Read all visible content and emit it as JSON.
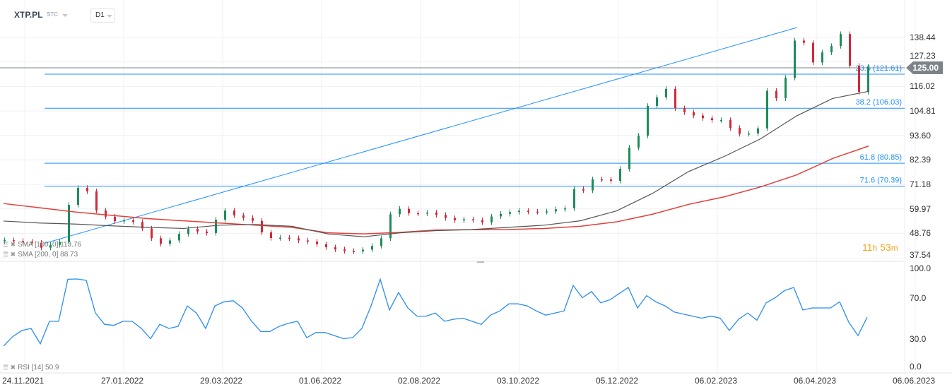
{
  "header": {
    "symbol": "XTP.PL",
    "exchange": "STC",
    "timeframe": "D1"
  },
  "current_price": "125.00",
  "countdown": {
    "hours": "11",
    "h_unit": "h",
    "minutes": "53",
    "m_unit": "m"
  },
  "legend": {
    "sma100": "SMA [100, 0] 113.76",
    "sma200": "SMA [200, 0] 88.73",
    "rsi": "RSI [14] 50.9"
  },
  "colors": {
    "up": "#1e8c5a",
    "down": "#d0293a",
    "sma100": "#555555",
    "sma200": "#e0403a",
    "fib": "#1e90ff",
    "rsi": "#2a8ef0",
    "price_line": "#7d8489"
  },
  "fib_labels": [
    "23.6 (121.61)",
    "38.2 (106.03)",
    "61.8 (80.85)",
    "71.6 (70.39)"
  ],
  "chart_data": {
    "type": "candlestick",
    "price_ticks": [
      "138.44",
      "127.23",
      "116.02",
      "104.81",
      "93.60",
      "82.39",
      "71.18",
      "59.97",
      "48.76",
      "37.54"
    ],
    "ylim": [
      37.54,
      138.44
    ],
    "date_ticks": [
      "24.11.2021",
      "27.01.2022",
      "29.03.2022",
      "01.06.2022",
      "02.08.2022",
      "03.10.2022",
      "05.12.2022",
      "06.02.2023",
      "06.04.2023",
      "06.06.2023"
    ],
    "grid": true,
    "close": [
      45.6,
      45.3,
      45,
      44.5,
      42.2,
      43.5,
      44.8,
      61.8,
      69.6,
      68,
      59.2,
      56.4,
      54.3,
      54.7,
      54,
      51,
      46.5,
      44,
      45.5,
      48.5,
      50.8,
      49.6,
      48.9,
      55,
      59.2,
      57,
      55.8,
      54.5,
      49.2,
      46.6,
      46.8,
      46.5,
      45.5,
      45,
      43.8,
      42.4,
      41.4,
      40.7,
      40.5,
      41.3,
      43,
      46.5,
      57.5,
      60,
      58,
      57.8,
      58.3,
      57.2,
      55.8,
      54.7,
      55.2,
      54.8,
      53.8,
      56.5,
      57.7,
      58.5,
      59.1,
      58.7,
      58.6,
      58.8,
      59.8,
      60.2,
      69,
      68.4,
      73.5,
      73.4,
      72.8,
      78.3,
      88,
      93.5,
      107.1,
      111,
      114.9,
      106,
      104.2,
      102.7,
      101.5,
      100.6,
      100.6,
      97,
      94.3,
      94.5,
      96.8,
      114,
      110.6,
      120,
      137,
      136,
      127,
      131.6,
      134.5,
      140,
      125.5,
      113.5,
      125
    ],
    "sma100": {
      "name": "SMA [100, 0]",
      "values": [
        54.4,
        53.5,
        53,
        52.2,
        51.5,
        51,
        52.5,
        52.8,
        52,
        48.5,
        47.2,
        49,
        50,
        50.5,
        51.5,
        52.5,
        54.5,
        59,
        67,
        77,
        84,
        92,
        102.5,
        110.5,
        113.76
      ]
    },
    "sma200": {
      "name": "SMA [200, 0]",
      "values": [
        62.4,
        60.5,
        58.5,
        57,
        55.5,
        54.5,
        53.5,
        52.5,
        51.5,
        49,
        48.5,
        49.2,
        50.3,
        50.4,
        50.5,
        51,
        52,
        54,
        57.5,
        62,
        65.5,
        70,
        75.5,
        83,
        88.73
      ]
    },
    "fibonacci": [
      {
        "level": 23.6,
        "price": 121.61
      },
      {
        "level": 38.2,
        "price": 106.03
      },
      {
        "level": 61.8,
        "price": 80.85
      },
      {
        "level": 71.6,
        "price": 70.39
      }
    ],
    "trendline": {
      "from": 44.2,
      "to": 143.0
    },
    "rsi": {
      "name": "RSI [14]",
      "ticks": [
        "100.0",
        "70.0",
        "30.0",
        "0.0"
      ],
      "ylim": [
        0,
        100
      ],
      "values": [
        22.8,
        32,
        38,
        40,
        25,
        47,
        47,
        88,
        88.3,
        87,
        55,
        44,
        43,
        47,
        47,
        40,
        30,
        44,
        40,
        42,
        62,
        55,
        40,
        62,
        66,
        67,
        60,
        47,
        37,
        37,
        42,
        45,
        47,
        31,
        36,
        36,
        33,
        30,
        31,
        40,
        62,
        88,
        58,
        75,
        60,
        52,
        52,
        55,
        47,
        49,
        50,
        47,
        44,
        53,
        57,
        64,
        64,
        62,
        57,
        53,
        55,
        57,
        82,
        70,
        76,
        65,
        68,
        74,
        80,
        60,
        72,
        66,
        62,
        56,
        54,
        52,
        50,
        52,
        50,
        38,
        49,
        55,
        48,
        65,
        70,
        77,
        80,
        58,
        60,
        60,
        60,
        66,
        46,
        33,
        50.9
      ]
    }
  }
}
